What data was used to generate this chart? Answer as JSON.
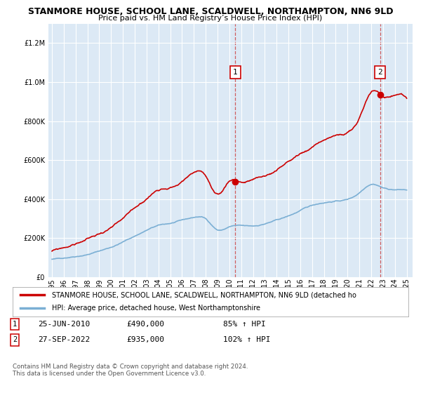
{
  "title_line1": "STANMORE HOUSE, SCHOOL LANE, SCALDWELL, NORTHAMPTON, NN6 9LD",
  "title_line2": "Price paid vs. HM Land Registry’s House Price Index (HPI)",
  "bg_color": "#dce9f5",
  "grid_color": "white",
  "red_color": "#cc0000",
  "blue_color": "#7bafd4",
  "sale1_year": 2010.5,
  "sale1_value": 490000,
  "sale2_year": 2022.75,
  "sale2_value": 935000,
  "ylim_max": 1300000,
  "legend_label_red": "STANMORE HOUSE, SCHOOL LANE, SCALDWELL, NORTHAMPTON, NN6 9LD (detached ho",
  "legend_label_blue": "HPI: Average price, detached house, West Northamptonshire",
  "note1_date": "25-JUN-2010",
  "note1_price": "£490,000",
  "note1_pct": "85% ↑ HPI",
  "note2_date": "27-SEP-2022",
  "note2_price": "£935,000",
  "note2_pct": "102% ↑ HPI",
  "copyright": "Contains HM Land Registry data © Crown copyright and database right 2024.\nThis data is licensed under the Open Government Licence v3.0."
}
